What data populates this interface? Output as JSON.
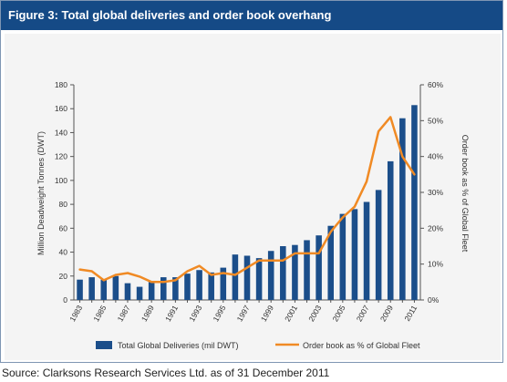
{
  "figure": {
    "title": "Figure 3: Total global deliveries and order book overhang",
    "source": "Source: Clarksons Research Services Ltd. as of 31 December 2011"
  },
  "colors": {
    "title_bar": "#154a86",
    "bars": "#1b4e8a",
    "line": "#f08a24",
    "plot_background": "#f4f4f4"
  },
  "chart_data": {
    "type": "bar",
    "categories": [
      "1983",
      "1984",
      "1985",
      "1986",
      "1987",
      "1988",
      "1989",
      "1990",
      "1991",
      "1992",
      "1993",
      "1994",
      "1995",
      "1996",
      "1997",
      "1998",
      "1999",
      "2000",
      "2001",
      "2002",
      "2003",
      "2004",
      "2005",
      "2006",
      "2007",
      "2008",
      "2009",
      "2010",
      "2011"
    ],
    "x_tick_labels": [
      "1983",
      "1985",
      "1987",
      "1989",
      "1991",
      "1993",
      "1995",
      "1997",
      "1999",
      "2001",
      "2003",
      "2005",
      "2007",
      "2009",
      "2011"
    ],
    "series": [
      {
        "name": "Total Global Deliveries (mil DWT)",
        "type": "bar",
        "axis": "left",
        "values": [
          17,
          19,
          17,
          20,
          14,
          11,
          15,
          19,
          19,
          22,
          25,
          23,
          27,
          38,
          37,
          35,
          41,
          45,
          46,
          50,
          54,
          62,
          72,
          76,
          82,
          92,
          116,
          152,
          163
        ]
      },
      {
        "name": "Order book as % of Global Fleet",
        "type": "line",
        "axis": "right",
        "values": [
          8.5,
          8.0,
          5.5,
          7.0,
          7.5,
          6.5,
          5.0,
          5.0,
          5.5,
          8.0,
          9.5,
          7.0,
          7.5,
          7.0,
          9.0,
          11.0,
          11.0,
          11.0,
          13.0,
          13.0,
          13.0,
          19.0,
          23.0,
          26.0,
          33.0,
          47.0,
          51.0,
          40.0,
          35.0
        ]
      }
    ],
    "ylabel": "Million Deadweight Tonnes (DWT)",
    "ylim": [
      0,
      180
    ],
    "yticks": [
      "0",
      "20",
      "40",
      "60",
      "80",
      "100",
      "120",
      "140",
      "160",
      "180"
    ],
    "y2label": "Order book as % of Global Fleet",
    "y2lim": [
      0,
      60
    ],
    "y2ticks": [
      "0%",
      "10%",
      "20%",
      "30%",
      "40%",
      "50%",
      "60%"
    ],
    "grid": false,
    "legend_position": "bottom"
  }
}
